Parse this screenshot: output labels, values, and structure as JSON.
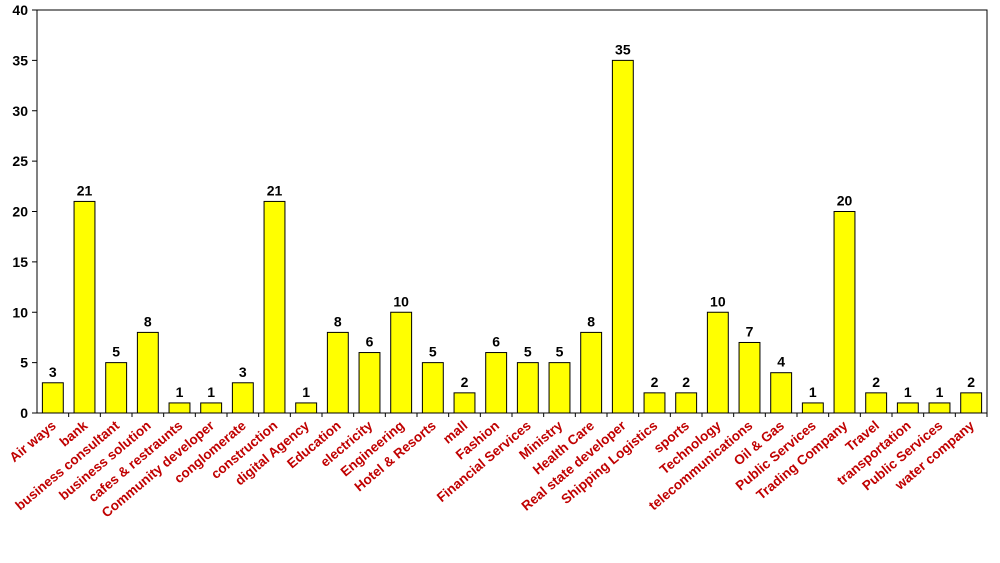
{
  "colors": {
    "bar_fill": "#ffff00",
    "bar_stroke": "#000000",
    "x_label_color": "#c00000",
    "text": "#000000"
  },
  "chart_data": {
    "type": "bar",
    "title": "",
    "xlabel": "",
    "ylabel": "",
    "ylim": [
      0,
      40
    ],
    "yticks": [
      0,
      5,
      10,
      15,
      20,
      25,
      30,
      35,
      40
    ],
    "grid": false,
    "legend": "none",
    "data_labels": true,
    "categories": [
      "Air ways",
      "bank",
      "business consultant",
      "business solution",
      "cafes & restraunts",
      "Community developer",
      "conglomerate",
      "construction",
      "digital Agency",
      "Education",
      "electricity",
      "Engineering",
      "Hotel & Resorts",
      "mall",
      "Fashion",
      "Financial Services",
      "Ministry",
      "Health Care",
      "Real state developer",
      "Shipping Logistics",
      "sports",
      "Technology",
      "telecommunications",
      "Oil & Gas",
      "Public Services",
      "Trading Company",
      "Travel",
      "transportation",
      "Public Services",
      "water company"
    ],
    "values": [
      3,
      21,
      5,
      8,
      1,
      1,
      3,
      21,
      1,
      8,
      6,
      10,
      5,
      2,
      6,
      5,
      5,
      8,
      35,
      2,
      2,
      10,
      7,
      4,
      1,
      20,
      2,
      1,
      1,
      2
    ]
  }
}
